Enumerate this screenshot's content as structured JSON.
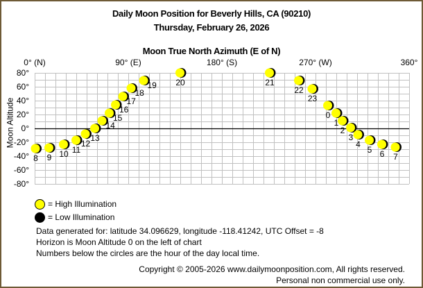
{
  "header": {
    "title": "Daily Moon Position for Beverly Hills, CA (90210)",
    "date": "Thursday, February 26, 2026"
  },
  "chart_data": {
    "type": "scatter",
    "xlabel": "Moon True North Azimuth (E of N)",
    "ylabel": "Moon Altitude",
    "xlim": [
      0,
      360
    ],
    "ylim": [
      -80,
      80
    ],
    "x_ticks": [
      {
        "v": 0,
        "label": "0° (N)"
      },
      {
        "v": 90,
        "label": "90° (E)"
      },
      {
        "v": 180,
        "label": "180° (S)"
      },
      {
        "v": 270,
        "label": "270° (W)"
      },
      {
        "v": 360,
        "label": "360°"
      }
    ],
    "y_ticks": [
      {
        "v": 80,
        "label": "80°"
      },
      {
        "v": 60,
        "label": "60°"
      },
      {
        "v": 40,
        "label": "40°"
      },
      {
        "v": 20,
        "label": "20°"
      },
      {
        "v": 0,
        "label": "0°"
      },
      {
        "v": -20,
        "label": "-20°"
      },
      {
        "v": -40,
        "label": "-40°"
      },
      {
        "v": -60,
        "label": "-60°"
      },
      {
        "v": -80,
        "label": "-80°"
      }
    ],
    "grid": true,
    "horizon_line": 0,
    "points": [
      {
        "hour": "0",
        "az": 282,
        "alt": 33
      },
      {
        "hour": "1",
        "az": 290,
        "alt": 22
      },
      {
        "hour": "2",
        "az": 296,
        "alt": 11
      },
      {
        "hour": "3",
        "az": 304,
        "alt": 1
      },
      {
        "hour": "4",
        "az": 311,
        "alt": -9
      },
      {
        "hour": "5",
        "az": 322,
        "alt": -17
      },
      {
        "hour": "6",
        "az": 334,
        "alt": -23
      },
      {
        "hour": "7",
        "az": 347,
        "alt": -27
      },
      {
        "hour": "8",
        "az": 1,
        "alt": -29
      },
      {
        "hour": "9",
        "az": 14,
        "alt": -28
      },
      {
        "hour": "10",
        "az": 28,
        "alt": -23
      },
      {
        "hour": "11",
        "az": 40,
        "alt": -17
      },
      {
        "hour": "12",
        "az": 49,
        "alt": -8
      },
      {
        "hour": "13",
        "az": 58,
        "alt": 0
      },
      {
        "hour": "14",
        "az": 65,
        "alt": 11
      },
      {
        "hour": "15",
        "az": 72,
        "alt": 22
      },
      {
        "hour": "16",
        "az": 78,
        "alt": 34
      },
      {
        "hour": "17",
        "az": 85,
        "alt": 46
      },
      {
        "hour": "18",
        "az": 93,
        "alt": 58
      },
      {
        "hour": "19",
        "az": 105,
        "alt": 69
      },
      {
        "hour": "20",
        "az": 140,
        "alt": 80
      },
      {
        "hour": "21",
        "az": 226,
        "alt": 80
      },
      {
        "hour": "22",
        "az": 254,
        "alt": 69
      },
      {
        "hour": "23",
        "az": 267,
        "alt": 57
      }
    ],
    "colors": {
      "high": "#ffff00",
      "low": "#000000",
      "grid": "#c0c0c0"
    }
  },
  "legend": {
    "high": "= High Illumination",
    "low": "= Low Illumination"
  },
  "notes": {
    "line1": "Data generated for: latitude 34.096629, longitude -118.41242, UTC Offset = -8",
    "line2": "Horizon is Moon Altitude 0 on the left of chart",
    "line3": "Numbers below the circles are the hour of the day local time."
  },
  "footer": {
    "copyright": "Copyright © 2005-2026 www.dailymoonposition.com, All rights reserved.",
    "usage": "Personal non commercial use only."
  }
}
